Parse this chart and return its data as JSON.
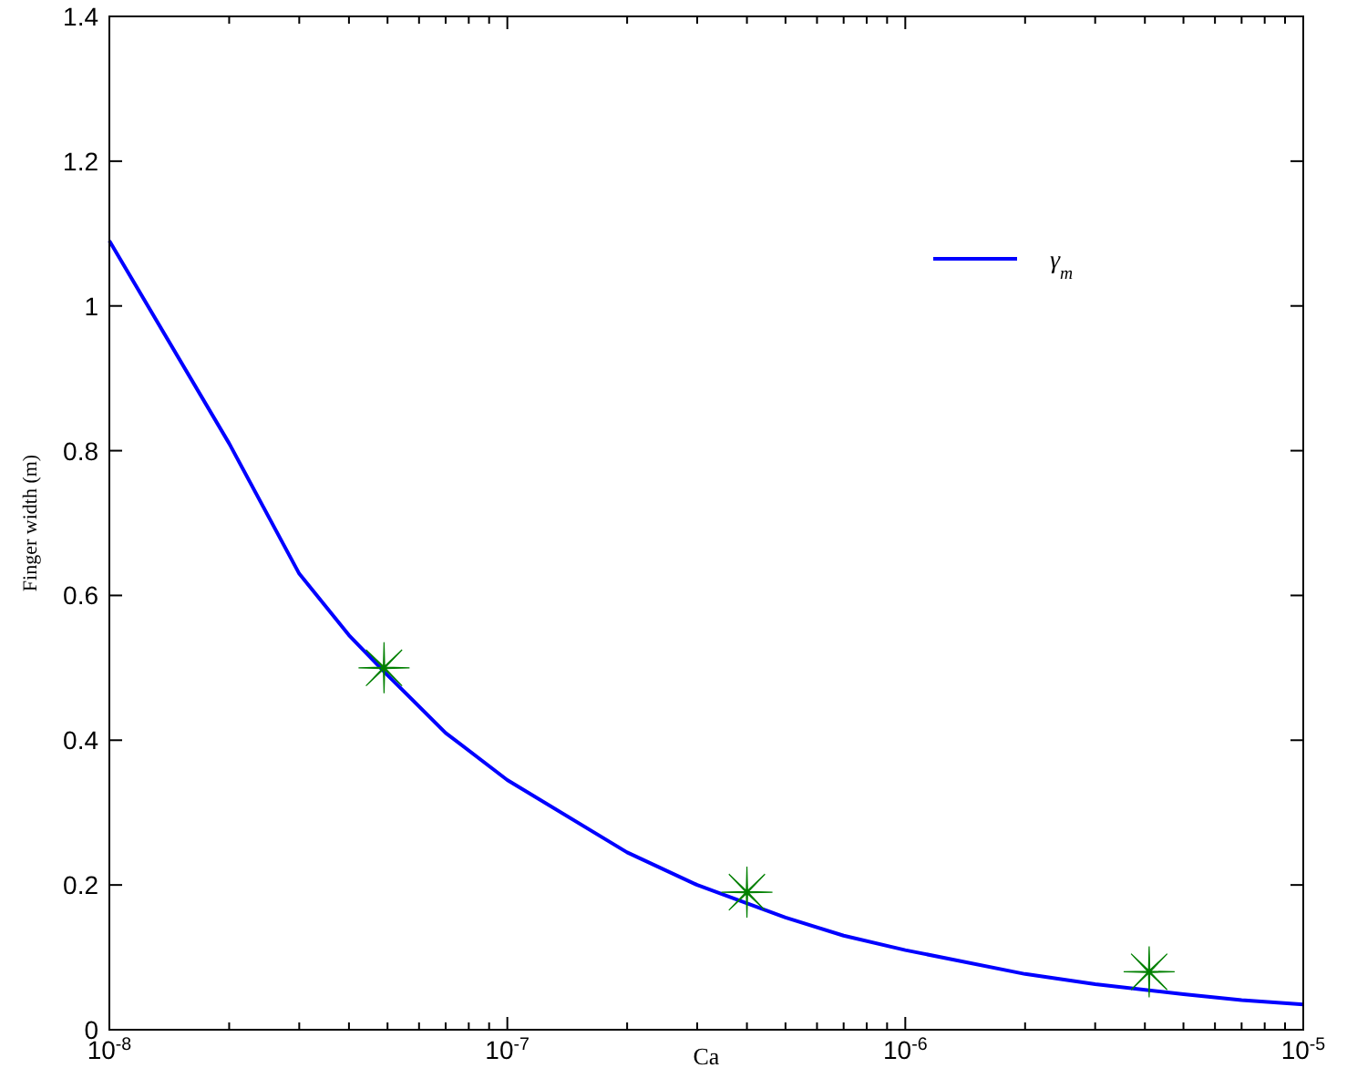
{
  "chart_data": {
    "type": "line",
    "xlabel": "Ca",
    "ylabel": "Finger width (m)",
    "log": "x",
    "xlim": [
      1e-08,
      1e-05
    ],
    "ylim": [
      0,
      1.4
    ],
    "xticks": [
      {
        "value": 1e-08,
        "label": "10$^{-8}$"
      },
      {
        "value": 2e-08,
        "label": null
      },
      {
        "value": 3e-08,
        "label": null
      },
      {
        "value": 4e-08,
        "label": null
      },
      {
        "value": 5e-08,
        "label": null
      },
      {
        "value": 6e-08,
        "label": null
      },
      {
        "value": 7e-08,
        "label": null
      },
      {
        "value": 8e-08,
        "label": null
      },
      {
        "value": 9e-08,
        "label": null
      },
      {
        "value": 1e-07,
        "label": "10$^{-7}$"
      },
      {
        "value": 2e-07,
        "label": null
      },
      {
        "value": 3e-07,
        "label": null
      },
      {
        "value": 4e-07,
        "label": null
      },
      {
        "value": 5e-07,
        "label": null
      },
      {
        "value": 6e-07,
        "label": null
      },
      {
        "value": 7e-07,
        "label": null
      },
      {
        "value": 8e-07,
        "label": null
      },
      {
        "value": 9e-07,
        "label": null
      },
      {
        "value": 1e-06,
        "label": "10$^{-6}$"
      },
      {
        "value": 2e-06,
        "label": null
      },
      {
        "value": 3e-06,
        "label": null
      },
      {
        "value": 4e-06,
        "label": null
      },
      {
        "value": 5e-06,
        "label": null
      },
      {
        "value": 6e-06,
        "label": null
      },
      {
        "value": 7e-06,
        "label": null
      },
      {
        "value": 8e-06,
        "label": null
      },
      {
        "value": 9e-06,
        "label": null
      },
      {
        "value": 1e-05,
        "label": "10$^{-5}$"
      }
    ],
    "yticks": [
      0,
      0.2,
      0.4,
      0.6,
      0.8,
      1,
      1.2,
      1.4
    ],
    "grid": false,
    "legend": "top right",
    "series": [
      {
        "name": "γ$_{m}$",
        "color": "#0000ff",
        "marker": "none",
        "line_style": "solid",
        "x": [
          1e-08,
          2e-08,
          3e-08,
          4e-08,
          5e-08,
          7e-08,
          1e-07,
          2e-07,
          3e-07,
          5e-07,
          7e-07,
          1e-06,
          2e-06,
          3e-06,
          5e-06,
          7e-06,
          1e-05
        ],
        "values": [
          1.09,
          0.81,
          0.63,
          0.545,
          0.49,
          0.41,
          0.345,
          0.245,
          0.2,
          0.155,
          0.13,
          0.11,
          0.077,
          0.063,
          0.049,
          0.041,
          0.035
        ]
      },
      {
        "type": "scatter",
        "color": "#008000",
        "marker": "star",
        "x": [
          4.9e-08,
          4e-07,
          4.1e-06
        ],
        "values": [
          0.5,
          0.19,
          0.08
        ]
      }
    ]
  }
}
